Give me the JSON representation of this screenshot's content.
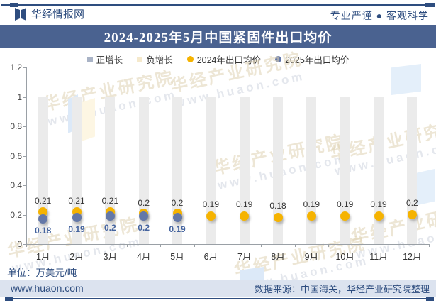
{
  "header": {
    "brand": "华经情报网",
    "slogan": "专业严谨 ● 客观科学"
  },
  "title": "2024-2025年5月中国紧固件出口均价",
  "legend": [
    {
      "label": "正增长",
      "marker": "square",
      "color": "#a9b3c6"
    },
    {
      "label": "负增长",
      "marker": "square",
      "color": "#f5e9cc"
    },
    {
      "label": "2024年出口均价",
      "marker": "circle",
      "color": "#f5b301"
    },
    {
      "label": "2025年出口均价",
      "marker": "circle",
      "color": "#6478a8"
    }
  ],
  "chart_data": {
    "type": "bar",
    "title": "2024-2025年5月中国紧固件出口均价",
    "categories": [
      "1月",
      "2月",
      "3月",
      "4月",
      "5月",
      "6月",
      "7月",
      "8月",
      "9月",
      "10月",
      "11月",
      "12月"
    ],
    "series": [
      {
        "name": "正增长",
        "type": "bar",
        "color": "#ebebeb",
        "values": [
          1,
          1,
          1,
          1,
          1,
          1,
          1,
          1,
          1,
          1,
          1,
          1
        ]
      },
      {
        "name": "2024年出口均价",
        "type": "scatter",
        "color": "#f5b301",
        "values": [
          0.21,
          0.21,
          0.21,
          0.2,
          0.2,
          0.19,
          0.19,
          0.18,
          0.19,
          0.19,
          0.19,
          0.2
        ]
      },
      {
        "name": "2025年出口均价",
        "type": "scatter",
        "color": "#6478a8",
        "values": [
          0.18,
          0.19,
          0.2,
          0.2,
          0.19,
          null,
          null,
          null,
          null,
          null,
          null,
          null
        ]
      }
    ],
    "ylim": [
      0,
      1.2
    ],
    "yticks": [
      0,
      0.2,
      0.4,
      0.6,
      0.8,
      1,
      1.2
    ],
    "grid": false,
    "legend_position": "top",
    "ylabel": "",
    "xlabel": ""
  },
  "footer": {
    "unit_label": "单位：万美元/吨",
    "site": "www.huaon.com",
    "source": "数据来源：中国海关，华经产业研究院整理"
  },
  "watermark": {
    "line1": "华经产业研究院",
    "line2": "www.huaon.com"
  },
  "colors": {
    "navy": "#2e4d7f",
    "title_bar_bg": "#4a6290",
    "footer_bar_bg": "#dce3ef",
    "bar_fill": "#ebebeb",
    "label_2024": "#333333",
    "label_2025": "#44639e",
    "axis": "#9aa0a6"
  }
}
